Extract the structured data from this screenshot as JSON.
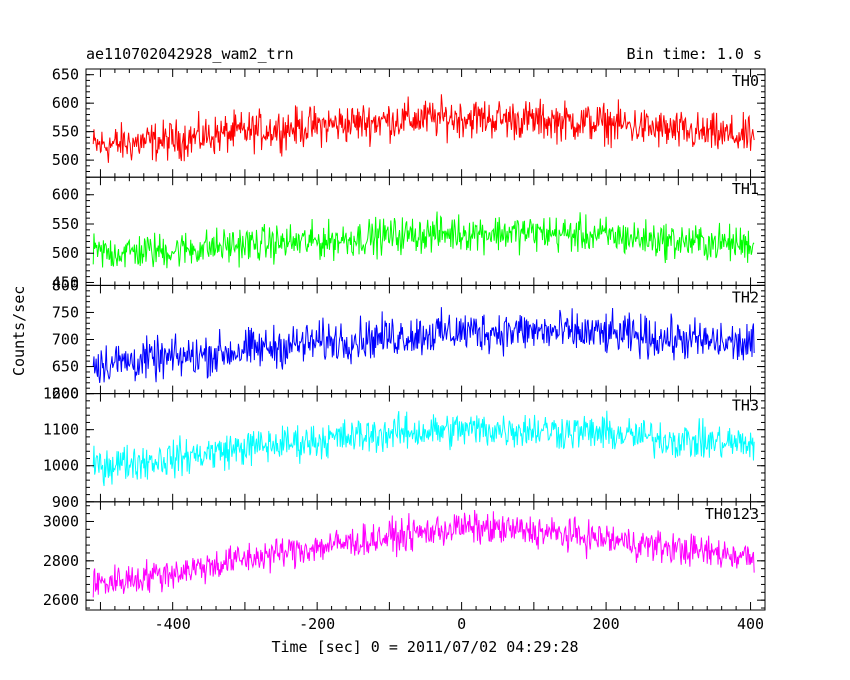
{
  "header": {
    "source_name": "ae110702042928_wam2_trn",
    "bin_time": "Bin time: 1.0 s"
  },
  "chart_data": {
    "type": "line",
    "xlabel": "Time [sec] 0 = 2011/07/02 04:29:28",
    "ylabel": "Counts/sec",
    "xlim": [
      -520,
      420
    ],
    "x_ticks": [
      -400,
      -200,
      0,
      200,
      400
    ],
    "x_range": [
      -510,
      405
    ],
    "bin_seconds": 1.0,
    "panels": [
      {
        "name": "TH0",
        "color": "#ff0000",
        "ylim": [
          470,
          660
        ],
        "y_ticks": [
          500,
          550,
          600,
          650
        ],
        "trend": [
          [
            -510,
            525
          ],
          [
            -400,
            535
          ],
          [
            -300,
            550
          ],
          [
            -200,
            560
          ],
          [
            -100,
            570
          ],
          [
            0,
            575
          ],
          [
            100,
            570
          ],
          [
            200,
            565
          ],
          [
            300,
            550
          ],
          [
            405,
            540
          ]
        ],
        "noise_amplitude": 38
      },
      {
        "name": "TH1",
        "color": "#00ff00",
        "ylim": [
          445,
          630
        ],
        "y_ticks": [
          450,
          500,
          550,
          600
        ],
        "trend": [
          [
            -510,
            500
          ],
          [
            -400,
            505
          ],
          [
            -300,
            515
          ],
          [
            -200,
            520
          ],
          [
            -100,
            530
          ],
          [
            0,
            535
          ],
          [
            100,
            535
          ],
          [
            200,
            530
          ],
          [
            300,
            520
          ],
          [
            405,
            515
          ]
        ],
        "noise_amplitude": 34
      },
      {
        "name": "TH2",
        "color": "#0000ff",
        "ylim": [
          600,
          800
        ],
        "y_ticks": [
          600,
          650,
          700,
          750,
          800
        ],
        "trend": [
          [
            -510,
            655
          ],
          [
            -400,
            665
          ],
          [
            -300,
            680
          ],
          [
            -200,
            695
          ],
          [
            -100,
            705
          ],
          [
            0,
            715
          ],
          [
            100,
            715
          ],
          [
            200,
            710
          ],
          [
            300,
            700
          ],
          [
            405,
            690
          ]
        ],
        "noise_amplitude": 42
      },
      {
        "name": "TH3",
        "color": "#00ffff",
        "ylim": [
          900,
          1200
        ],
        "y_ticks": [
          900,
          1000,
          1100,
          1200
        ],
        "trend": [
          [
            -510,
            1000
          ],
          [
            -400,
            1020
          ],
          [
            -300,
            1050
          ],
          [
            -200,
            1070
          ],
          [
            -100,
            1090
          ],
          [
            0,
            1100
          ],
          [
            100,
            1100
          ],
          [
            200,
            1090
          ],
          [
            300,
            1070
          ],
          [
            405,
            1060
          ]
        ],
        "noise_amplitude": 55
      },
      {
        "name": "TH0123",
        "color": "#ff00ff",
        "ylim": [
          2550,
          3100
        ],
        "y_ticks": [
          2600,
          2800,
          3000
        ],
        "trend": [
          [
            -510,
            2680
          ],
          [
            -400,
            2740
          ],
          [
            -300,
            2810
          ],
          [
            -200,
            2870
          ],
          [
            -100,
            2920
          ],
          [
            0,
            2970
          ],
          [
            100,
            2950
          ],
          [
            200,
            2910
          ],
          [
            300,
            2860
          ],
          [
            405,
            2820
          ]
        ],
        "noise_amplitude": 90
      }
    ]
  }
}
